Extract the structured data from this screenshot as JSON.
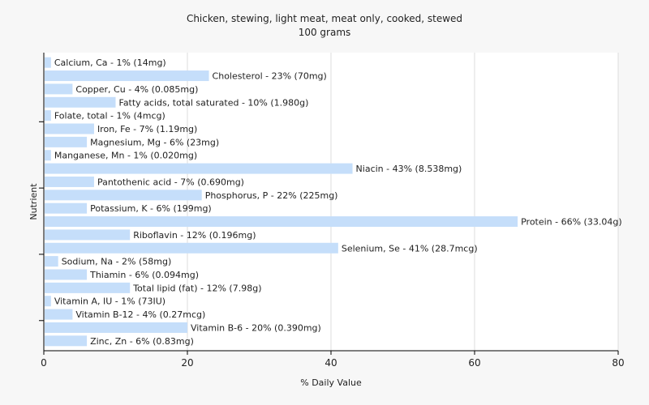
{
  "chart_data": {
    "type": "bar",
    "orientation": "horizontal",
    "title": "Chicken, stewing, light meat, meat only, cooked, stewed",
    "subtitle": "100 grams",
    "xlabel": "% Daily Value",
    "ylabel": "Nutrient",
    "xlim": [
      0,
      80
    ],
    "xticks": [
      0,
      20,
      40,
      60,
      80
    ],
    "grid": true,
    "colors": {
      "bar": "#c5defa",
      "grid": "#dddddd",
      "plot_bg": "#ffffff",
      "page_bg": "#f7f7f7"
    },
    "categories": [
      "Calcium, Ca",
      "Cholesterol",
      "Copper, Cu",
      "Fatty acids, total saturated",
      "Folate, total",
      "Iron, Fe",
      "Magnesium, Mg",
      "Manganese, Mn",
      "Niacin",
      "Pantothenic acid",
      "Phosphorus, P",
      "Potassium, K",
      "Protein",
      "Riboflavin",
      "Selenium, Se",
      "Sodium, Na",
      "Thiamin",
      "Total lipid (fat)",
      "Vitamin A, IU",
      "Vitamin B-12",
      "Vitamin B-6",
      "Zinc, Zn"
    ],
    "values": [
      1,
      23,
      4,
      10,
      1,
      7,
      6,
      1,
      43,
      7,
      22,
      6,
      66,
      12,
      41,
      2,
      6,
      12,
      1,
      4,
      20,
      6
    ],
    "labels": [
      "Calcium, Ca - 1% (14mg)",
      "Cholesterol - 23% (70mg)",
      "Copper, Cu - 4% (0.085mg)",
      "Fatty acids, total saturated - 10% (1.980g)",
      "Folate, total - 1% (4mcg)",
      "Iron, Fe - 7% (1.19mg)",
      "Magnesium, Mg - 6% (23mg)",
      "Manganese, Mn - 1% (0.020mg)",
      "Niacin - 43% (8.538mg)",
      "Pantothenic acid - 7% (0.690mg)",
      "Phosphorus, P - 22% (225mg)",
      "Potassium, K - 6% (199mg)",
      "Protein - 66% (33.04g)",
      "Riboflavin - 12% (0.196mg)",
      "Selenium, Se - 41% (28.7mcg)",
      "Sodium, Na - 2% (58mg)",
      "Thiamin - 6% (0.094mg)",
      "Total lipid (fat) - 12% (7.98g)",
      "Vitamin A, IU - 1% (73IU)",
      "Vitamin B-12 - 4% (0.27mcg)",
      "Vitamin B-6 - 20% (0.390mg)",
      "Zinc, Zn - 6% (0.83mg)"
    ]
  }
}
